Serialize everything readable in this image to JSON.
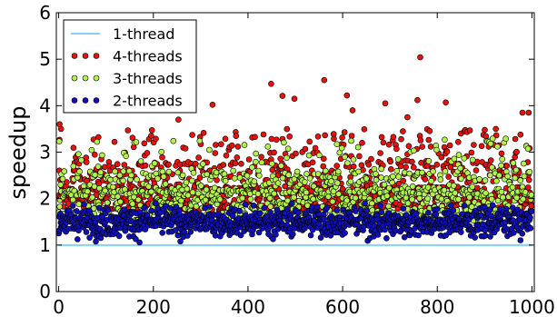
{
  "chart_data": {
    "type": "scatter",
    "title": "",
    "xlabel": "",
    "ylabel": "speedup",
    "xlim": [
      -5,
      1005
    ],
    "ylim": [
      0,
      6
    ],
    "xticks": [
      "0",
      "200",
      "400",
      "600",
      "800",
      "1000"
    ],
    "yticks": [
      "0",
      "1",
      "2",
      "3",
      "4",
      "5",
      "6"
    ],
    "grid": false,
    "legend_position": "top-left",
    "n_points": 1000,
    "series": [
      {
        "name": "1-thread",
        "kind": "line",
        "color": "#87cefa",
        "x": [
          0,
          1000
        ],
        "y": [
          1.0,
          1.0
        ]
      },
      {
        "name": "4-threads",
        "kind": "points",
        "color": "#e8120c",
        "mean": 2.0,
        "range": [
          1.0,
          5.05
        ],
        "outliers": [
          {
            "x": 2,
            "y": 3.6
          },
          {
            "x": 5,
            "y": 3.5
          },
          {
            "x": 253,
            "y": 3.7
          },
          {
            "x": 325,
            "y": 4.02
          },
          {
            "x": 449,
            "y": 4.47
          },
          {
            "x": 473,
            "y": 4.21
          },
          {
            "x": 498,
            "y": 4.15
          },
          {
            "x": 561,
            "y": 4.55
          },
          {
            "x": 609,
            "y": 4.22
          },
          {
            "x": 621,
            "y": 3.9
          },
          {
            "x": 690,
            "y": 4.05
          },
          {
            "x": 737,
            "y": 3.75
          },
          {
            "x": 758,
            "y": 4.12
          },
          {
            "x": 764,
            "y": 5.04
          },
          {
            "x": 818,
            "y": 4.07
          },
          {
            "x": 980,
            "y": 3.85
          },
          {
            "x": 993,
            "y": 3.85
          }
        ]
      },
      {
        "name": "3-threads",
        "kind": "points",
        "color": "#b3f24d",
        "mean": 1.85,
        "range": [
          1.0,
          3.8
        ]
      },
      {
        "name": "2-threads",
        "kind": "points",
        "color": "#1010bb",
        "mean": 1.5,
        "range": [
          0.95,
          2.3
        ]
      }
    ]
  }
}
